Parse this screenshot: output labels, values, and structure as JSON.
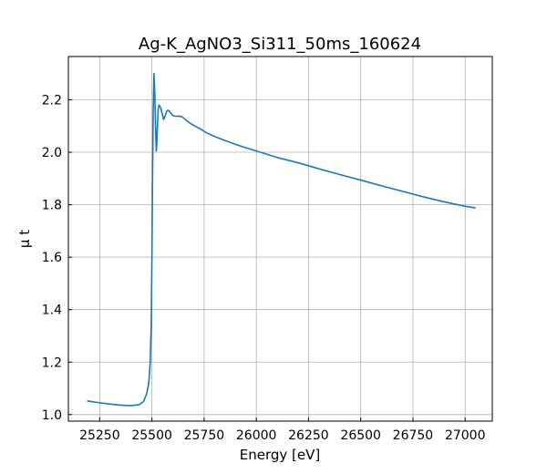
{
  "chart_data": {
    "type": "line",
    "title": "Ag-K_AgNO3_Si311_50ms_160624",
    "xlabel": "Energy [eV]",
    "ylabel": "μ t",
    "xlim": [
      25100,
      27130
    ],
    "ylim": [
      0.975,
      2.365
    ],
    "x_ticks": [
      25250,
      25500,
      25750,
      26000,
      26250,
      26500,
      26750,
      27000
    ],
    "y_ticks": [
      1.0,
      1.2,
      1.4,
      1.6,
      1.8,
      2.0,
      2.2
    ],
    "x_tick_labels": [
      "25250",
      "25500",
      "25750",
      "26000",
      "26250",
      "26500",
      "26750",
      "27000"
    ],
    "y_tick_labels": [
      "1.0",
      "1.2",
      "1.4",
      "1.6",
      "1.8",
      "2.0",
      "2.2"
    ],
    "grid": true,
    "series": [
      {
        "color": "#1f77b4",
        "x": [
          25190,
          25250,
          25300,
          25350,
          25400,
          25440,
          25460,
          25475,
          25485,
          25492,
          25497,
          25500,
          25503,
          25506,
          25510,
          25514,
          25518,
          25521,
          25524,
          25527,
          25530,
          25534,
          25538,
          25542,
          25548,
          25556,
          25564,
          25570,
          25576,
          25582,
          25590,
          25600,
          25615,
          25630,
          25645,
          25660,
          25675,
          25690,
          25710,
          25730,
          25760,
          25800,
          25850,
          25900,
          25950,
          26000,
          26100,
          26200,
          26300,
          26400,
          26500,
          26600,
          26700,
          26800,
          26900,
          27000,
          27050
        ],
        "y": [
          1.052,
          1.045,
          1.04,
          1.036,
          1.034,
          1.038,
          1.05,
          1.08,
          1.12,
          1.2,
          1.35,
          1.6,
          1.9,
          2.15,
          2.3,
          2.22,
          2.08,
          2.005,
          2.04,
          2.11,
          2.16,
          2.18,
          2.175,
          2.17,
          2.15,
          2.125,
          2.14,
          2.155,
          2.16,
          2.158,
          2.15,
          2.14,
          2.137,
          2.138,
          2.135,
          2.125,
          2.115,
          2.107,
          2.098,
          2.09,
          2.075,
          2.06,
          2.045,
          2.03,
          2.017,
          2.005,
          1.98,
          1.96,
          1.937,
          1.915,
          1.894,
          1.872,
          1.851,
          1.83,
          1.811,
          1.794,
          1.788
        ]
      }
    ]
  }
}
